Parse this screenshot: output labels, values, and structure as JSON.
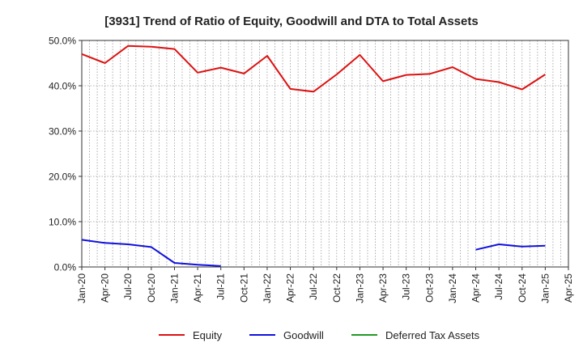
{
  "chart_data": {
    "type": "line",
    "title": "[3931]  Trend of Ratio of Equity, Goodwill and DTA to Total Assets",
    "xlabel": "",
    "ylabel": "",
    "ylim": [
      0,
      50
    ],
    "y_ticks": [
      "0.0%",
      "10.0%",
      "20.0%",
      "30.0%",
      "40.0%",
      "50.0%"
    ],
    "y_tick_values": [
      0,
      10,
      20,
      30,
      40,
      50
    ],
    "x_ticks": [
      "Jan-20",
      "Apr-20",
      "Jul-20",
      "Oct-20",
      "Jan-21",
      "Apr-21",
      "Jul-21",
      "Oct-21",
      "Jan-22",
      "Apr-22",
      "Jul-22",
      "Oct-22",
      "Jan-23",
      "Apr-23",
      "Jul-23",
      "Oct-23",
      "Jan-24",
      "Apr-24",
      "Jul-24",
      "Oct-24",
      "Jan-25",
      "Apr-25"
    ],
    "grid": true,
    "legend_position": "bottom",
    "series": [
      {
        "name": "Equity",
        "color": "#dd1111",
        "values": [
          47.0,
          45.0,
          48.8,
          48.6,
          48.1,
          42.9,
          44.0,
          42.7,
          46.6,
          39.3,
          38.7,
          42.5,
          46.8,
          41.0,
          42.4,
          42.6,
          44.1,
          41.5,
          40.8,
          39.2,
          42.5,
          null
        ]
      },
      {
        "name": "Goodwill",
        "color": "#1111dd",
        "values": [
          6.0,
          5.3,
          5.0,
          4.4,
          0.9,
          0.5,
          0.2,
          null,
          null,
          null,
          null,
          null,
          null,
          null,
          null,
          null,
          null,
          3.8,
          5.0,
          4.5,
          4.7,
          null
        ]
      },
      {
        "name": "Deferred Tax Assets",
        "color": "#229922",
        "values": [
          null,
          null,
          null,
          null,
          null,
          null,
          null,
          null,
          null,
          null,
          null,
          null,
          null,
          null,
          null,
          null,
          null,
          null,
          null,
          null,
          null,
          null
        ]
      }
    ]
  }
}
